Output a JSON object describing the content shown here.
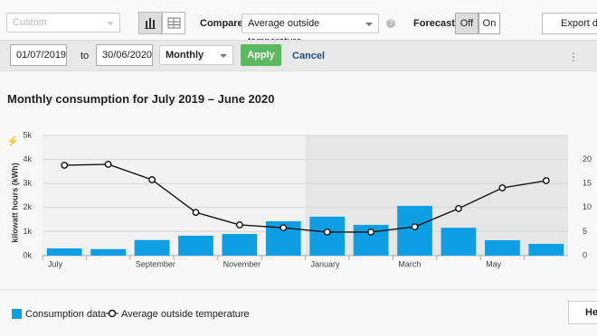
{
  "toolbar": {
    "period": "Custom",
    "compare_label": "Compare",
    "compare_value": "Average outside temperature",
    "forecast_label": "Forecast",
    "forecast_off": "Off",
    "forecast_on": "On",
    "export": "Export data"
  },
  "filter": {
    "from": "01/07/2019",
    "to_label": "to",
    "to": "30/06/2020",
    "interval": "Monthly",
    "apply": "Apply",
    "cancel": "Cancel"
  },
  "help": "Help",
  "chart_data": {
    "type": "bar",
    "title": "Monthly consumption for July 2019 – June 2020",
    "y_label": "kilowatt hours (kWh)",
    "categories": [
      "July",
      null,
      "September",
      null,
      "November",
      null,
      "January",
      null,
      "March",
      null,
      "May",
      null
    ],
    "series": [
      {
        "name": "Consumption data",
        "color": "#0d9ee3",
        "values": [
          300,
          270,
          650,
          830,
          900,
          1430,
          1620,
          1280,
          2070,
          1160,
          640,
          490
        ]
      },
      {
        "name": "Average outside temperature",
        "type": "line",
        "color": "#111111",
        "axis": "y2",
        "values": [
          18.8,
          19.0,
          15.8,
          9.0,
          6.4,
          5.8,
          4.9,
          4.9,
          6.0,
          9.8,
          14.1,
          15.6
        ]
      }
    ],
    "ylim": [
      0,
      5000
    ],
    "yticks": [
      {
        "value": 0,
        "label": "0k"
      },
      {
        "value": 1000,
        "label": "1k"
      },
      {
        "value": 2000,
        "label": "2k"
      },
      {
        "value": 3000,
        "label": "3k"
      },
      {
        "value": 4000,
        "label": "4k"
      },
      {
        "value": 5000,
        "label": "5k"
      }
    ],
    "y2lim": [
      0,
      25
    ],
    "y2ticks": [
      0,
      5,
      10,
      15,
      20
    ],
    "grid": true
  }
}
